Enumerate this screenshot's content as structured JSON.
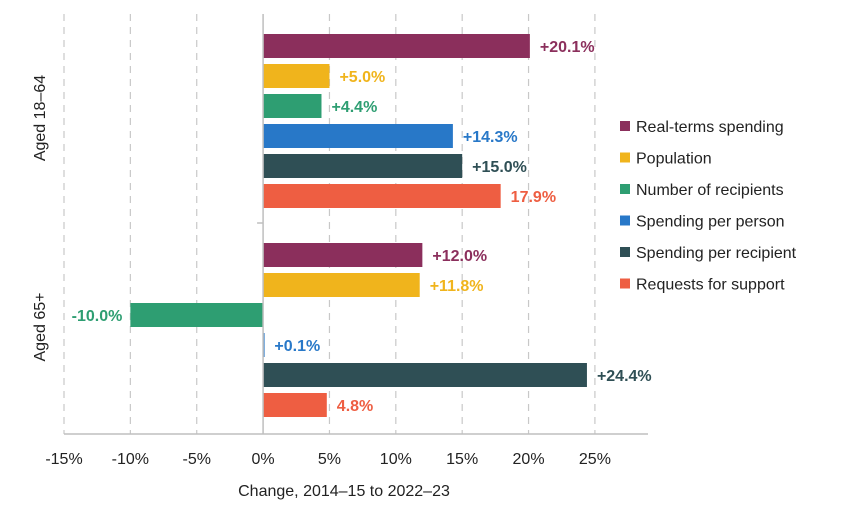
{
  "chart_data": {
    "type": "bar",
    "orientation": "horizontal",
    "xlabel": "Change, 2014–15 to 2022–23",
    "xlim": [
      -15,
      29
    ],
    "x_ticks": [
      -15,
      -10,
      -5,
      0,
      5,
      10,
      15,
      20,
      25
    ],
    "x_tick_labels": [
      "-15%",
      "-10%",
      "-5%",
      "0%",
      "5%",
      "10%",
      "15%",
      "20%",
      "25%"
    ],
    "grid": "vertical dashed",
    "legend_position": "right",
    "groups": [
      "Aged 18–64",
      "Aged 65+"
    ],
    "series": [
      {
        "name": "Real-terms spending",
        "color": "#8b2f5c",
        "values": [
          20.1,
          12.0
        ],
        "labels": [
          "+20.1%",
          "+12.0%"
        ]
      },
      {
        "name": "Population",
        "color": "#f0b41c",
        "values": [
          5.0,
          11.8
        ],
        "labels": [
          "+5.0%",
          "+11.8%"
        ]
      },
      {
        "name": "Number of recipients",
        "color": "#2e9e72",
        "values": [
          4.4,
          -10.0
        ],
        "labels": [
          "+4.4%",
          "-10.0%"
        ]
      },
      {
        "name": "Spending per person",
        "color": "#2878c8",
        "values": [
          14.3,
          0.1
        ],
        "labels": [
          "+14.3%",
          "+0.1%"
        ]
      },
      {
        "name": "Spending per recipient",
        "color": "#2f4f55",
        "values": [
          15.0,
          24.4
        ],
        "labels": [
          "+15.0%",
          "+24.4%"
        ]
      },
      {
        "name": "Requests for support",
        "color": "#ee5e42",
        "values": [
          17.9,
          4.8
        ],
        "labels": [
          "17.9%",
          "4.8%"
        ]
      }
    ]
  }
}
